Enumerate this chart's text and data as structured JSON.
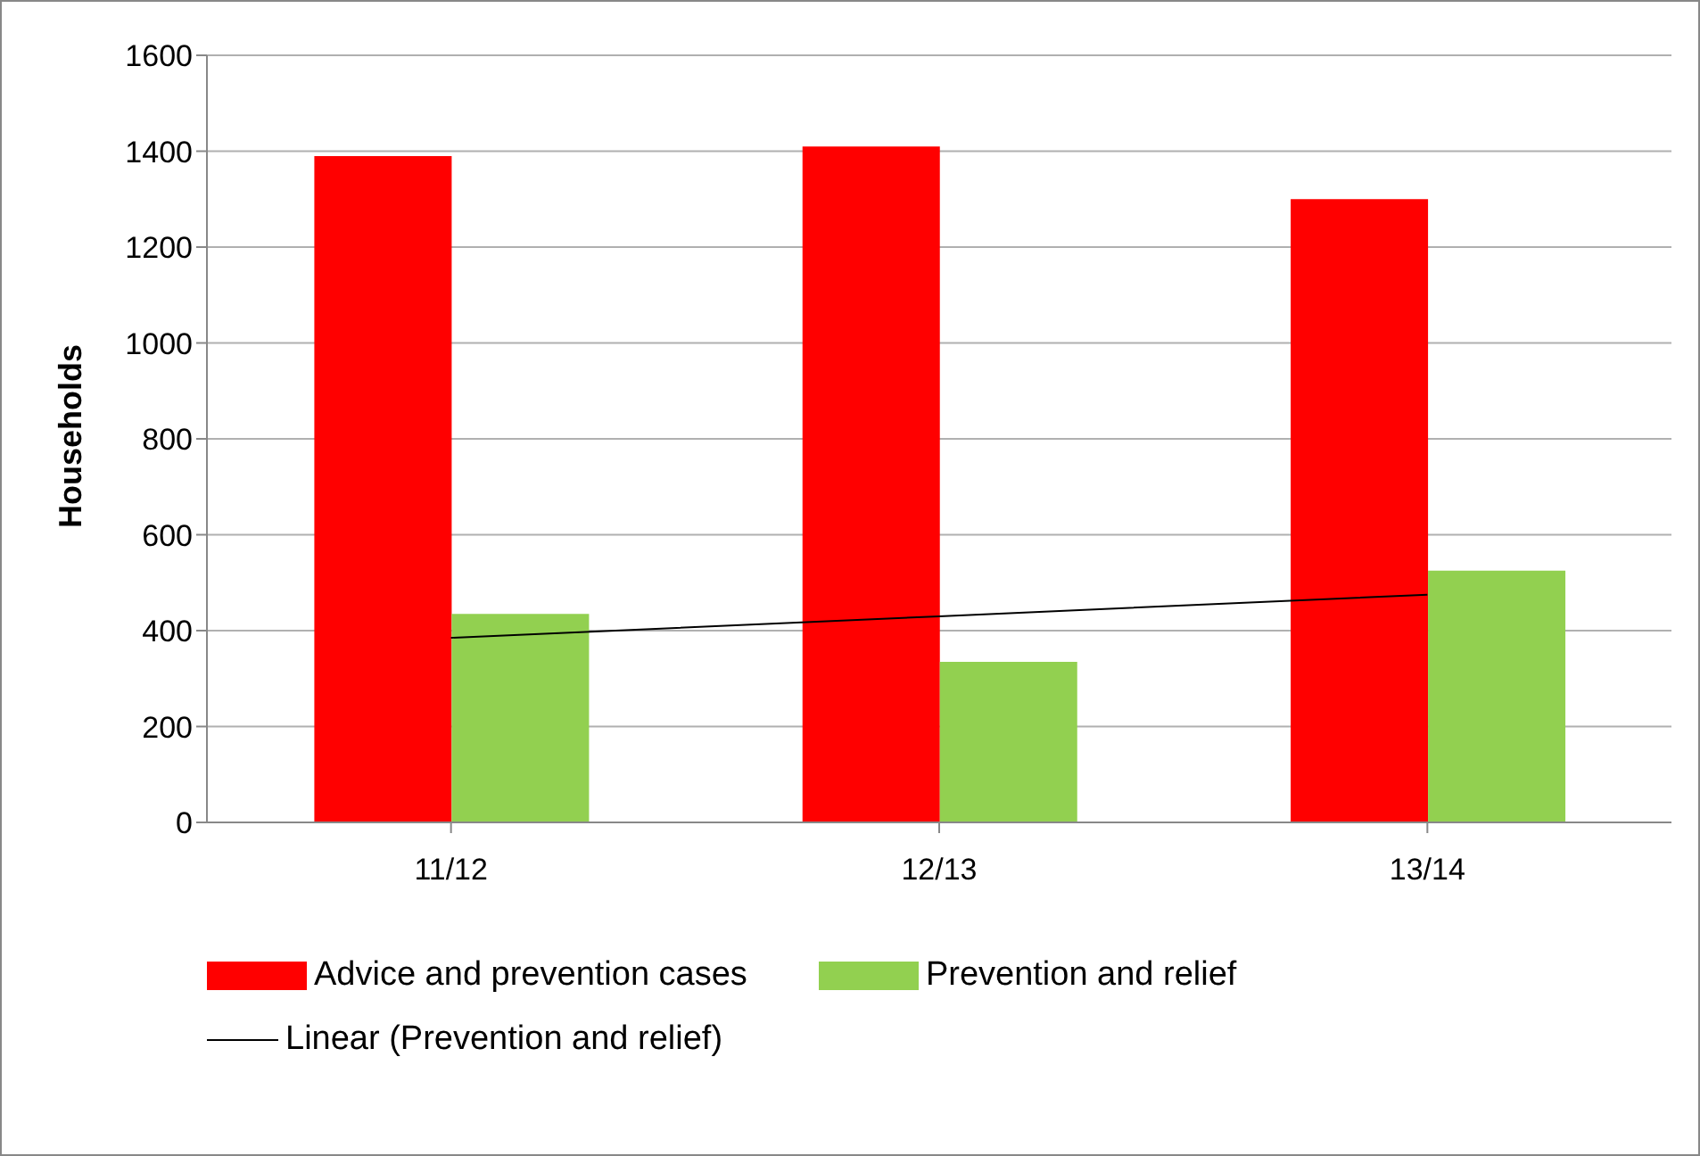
{
  "chart_data": {
    "type": "bar",
    "ylabel": "Households",
    "categories": [
      "11/12",
      "12/13",
      "13/14"
    ],
    "series": [
      {
        "name": "Advice and prevention cases",
        "color": "#ff0000",
        "values": [
          1390,
          1410,
          1300
        ]
      },
      {
        "name": "Prevention and relief",
        "color": "#92d050",
        "values": [
          435,
          335,
          525
        ]
      },
      {
        "name": "Linear (Prevention and relief)",
        "type": "line",
        "color": "#000000",
        "values": [
          385,
          430,
          475
        ]
      }
    ],
    "ylim": [
      0,
      1600
    ],
    "yticks": [
      0,
      200,
      400,
      600,
      800,
      1000,
      1200,
      1400,
      1600
    ],
    "grid": "y",
    "legend": "bottom",
    "marker": "none"
  }
}
